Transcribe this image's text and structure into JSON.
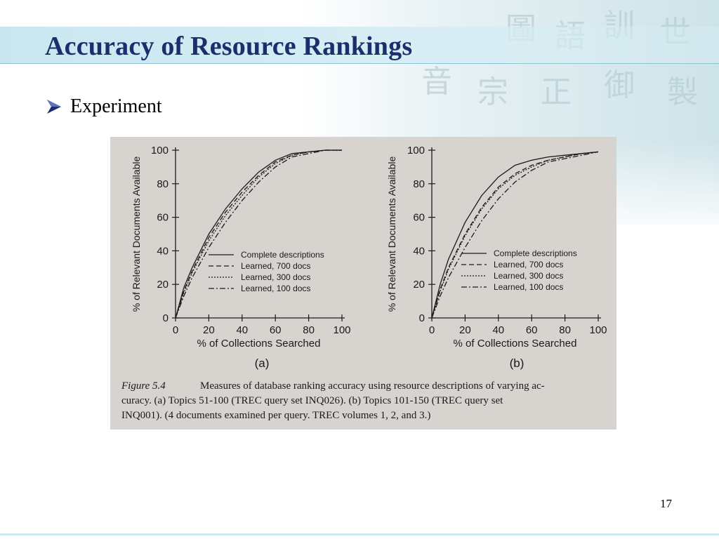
{
  "slide": {
    "title": "Accuracy of Resource Rankings",
    "bullet": "Experiment",
    "page_number": "17",
    "colors": {
      "title": "#1b2f6e",
      "title_bar": "#c9e6f0",
      "figure_bg": "#d7d4cf"
    }
  },
  "figure": {
    "caption_label": "Figure 5.4",
    "caption_line1": "Measures of database ranking accuracy using resource descriptions of varying ac-",
    "caption_line2": "curacy.  (a) Topics 51-100 (TREC query set INQ026).  (b) Topics 101-150 (TREC query set",
    "caption_line3": "INQ001). (4 documents examined per query. TREC volumes 1, 2, and 3.)"
  },
  "chart_data": [
    {
      "type": "line",
      "panel_label": "(a)",
      "xlabel": "% of Collections Searched",
      "ylabel": "% of Relevant Documents Available",
      "xlim": [
        0,
        100
      ],
      "ylim": [
        0,
        100
      ],
      "x_ticks": [
        "0",
        "20",
        "40",
        "60",
        "80",
        "100"
      ],
      "y_ticks": [
        "0",
        "20",
        "40",
        "60",
        "80",
        "100"
      ],
      "legend_position": "bottom-right",
      "x": [
        0,
        5,
        10,
        20,
        30,
        40,
        50,
        60,
        70,
        80,
        90,
        100
      ],
      "series": [
        {
          "name": "Complete descriptions",
          "style": "solid",
          "values": [
            0,
            18,
            30,
            50,
            65,
            77,
            87,
            94,
            98,
            99,
            100,
            100
          ]
        },
        {
          "name": "Learned, 700 docs",
          "style": "dashed",
          "values": [
            0,
            16,
            28,
            48,
            63,
            75,
            85,
            93,
            97,
            99,
            100,
            100
          ]
        },
        {
          "name": "Learned, 300 docs",
          "style": "dotted",
          "values": [
            0,
            15,
            27,
            46,
            61,
            73,
            84,
            92,
            97,
            99,
            100,
            100
          ]
        },
        {
          "name": "Learned, 100 docs",
          "style": "dashdot",
          "values": [
            0,
            13,
            24,
            42,
            57,
            70,
            81,
            90,
            96,
            98,
            100,
            100
          ]
        }
      ]
    },
    {
      "type": "line",
      "panel_label": "(b)",
      "xlabel": "% of Collections Searched",
      "ylabel": "% of Relevant Documents Available",
      "xlim": [
        0,
        100
      ],
      "ylim": [
        0,
        100
      ],
      "x_ticks": [
        "0",
        "20",
        "40",
        "60",
        "80",
        "100"
      ],
      "y_ticks": [
        "0",
        "20",
        "40",
        "60",
        "80",
        "100"
      ],
      "legend_position": "bottom-right",
      "x": [
        0,
        5,
        10,
        20,
        30,
        40,
        50,
        60,
        70,
        80,
        90,
        100
      ],
      "series": [
        {
          "name": "Complete descriptions",
          "style": "solid",
          "values": [
            0,
            20,
            35,
            57,
            73,
            84,
            91,
            94,
            96,
            97,
            98,
            99
          ]
        },
        {
          "name": "Learned, 700 docs",
          "style": "dashed",
          "values": [
            0,
            17,
            30,
            50,
            66,
            78,
            86,
            91,
            94,
            96,
            98,
            99
          ]
        },
        {
          "name": "Learned, 300 docs",
          "style": "dotted",
          "values": [
            0,
            16,
            29,
            49,
            65,
            77,
            85,
            90,
            94,
            96,
            98,
            99
          ]
        },
        {
          "name": "Learned, 100 docs",
          "style": "dashdot",
          "values": [
            0,
            13,
            24,
            42,
            58,
            71,
            81,
            88,
            93,
            95,
            97,
            99
          ]
        }
      ]
    }
  ]
}
